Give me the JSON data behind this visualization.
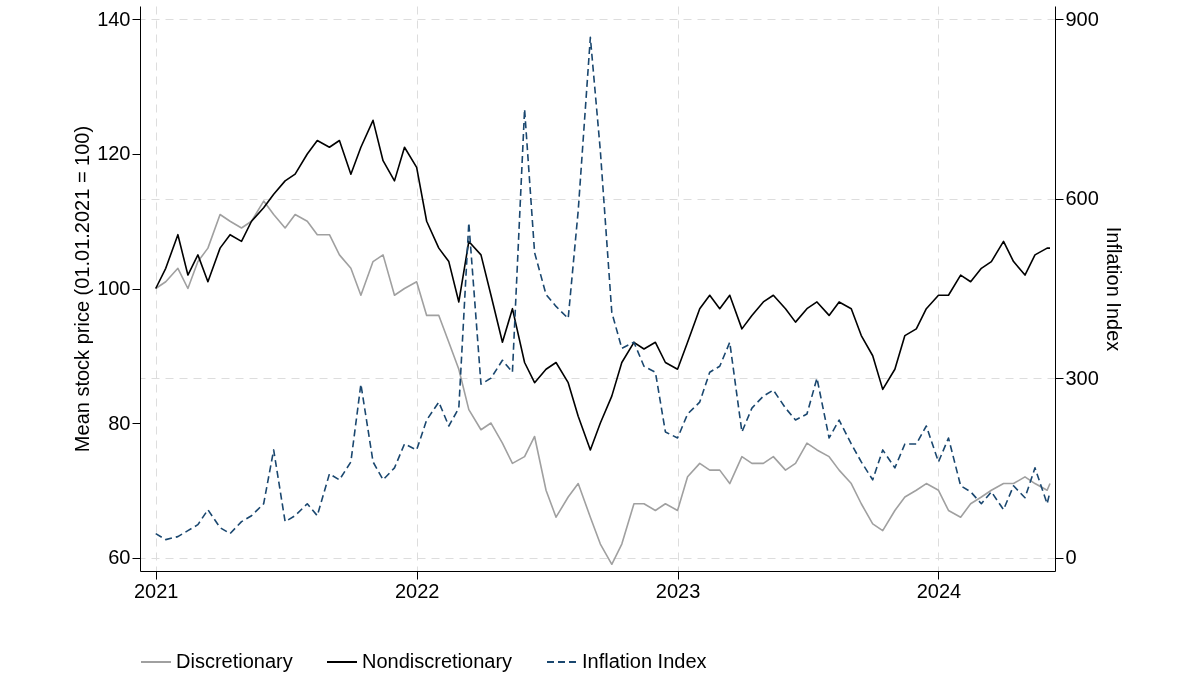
{
  "chart_data": {
    "type": "line",
    "ylabel": "Mean stock price (01.01.2021 = 100)",
    "y2label": "Inflation Index",
    "x": [
      "2021-01-01",
      "2021-01-15",
      "2021-02-01",
      "2021-02-15",
      "2021-03-01",
      "2021-03-15",
      "2021-04-01",
      "2021-04-15",
      "2021-05-01",
      "2021-05-15",
      "2021-06-01",
      "2021-06-15",
      "2021-07-01",
      "2021-07-15",
      "2021-08-01",
      "2021-08-15",
      "2021-09-01",
      "2021-09-15",
      "2021-10-01",
      "2021-10-15",
      "2021-11-01",
      "2021-11-15",
      "2021-12-01",
      "2021-12-15",
      "2022-01-01",
      "2022-01-15",
      "2022-02-01",
      "2022-02-15",
      "2022-03-01",
      "2022-03-15",
      "2022-04-01",
      "2022-04-15",
      "2022-05-01",
      "2022-05-15",
      "2022-06-01",
      "2022-06-15",
      "2022-07-01",
      "2022-07-15",
      "2022-08-01",
      "2022-08-15",
      "2022-09-01",
      "2022-09-15",
      "2022-10-01",
      "2022-10-15",
      "2022-11-01",
      "2022-11-15",
      "2022-12-01",
      "2022-12-15",
      "2023-01-01",
      "2023-01-15",
      "2023-02-01",
      "2023-02-15",
      "2023-03-01",
      "2023-03-15",
      "2023-04-01",
      "2023-04-15",
      "2023-05-01",
      "2023-05-15",
      "2023-06-01",
      "2023-06-15",
      "2023-07-01",
      "2023-07-15",
      "2023-08-01",
      "2023-08-15",
      "2023-09-01",
      "2023-09-15",
      "2023-10-01",
      "2023-10-15",
      "2023-11-01",
      "2023-11-15",
      "2023-12-01",
      "2023-12-15",
      "2024-01-01",
      "2024-01-15",
      "2024-02-01",
      "2024-02-15",
      "2024-03-01",
      "2024-03-15",
      "2024-04-01",
      "2024-04-15",
      "2024-05-01",
      "2024-05-15",
      "2024-06-01",
      "2024-06-05"
    ],
    "series": [
      {
        "name": "Discretionary",
        "color": "#a0a0a0",
        "line_style": "solid",
        "values": [
          100,
          101,
          103,
          100,
          104,
          106,
          111,
          110,
          109,
          110,
          113,
          111,
          109,
          111,
          110,
          108,
          108,
          105,
          103,
          99,
          104,
          105,
          99,
          100,
          101,
          96,
          96,
          92,
          88,
          82,
          79,
          80,
          77,
          74,
          75,
          78,
          70,
          66,
          69,
          71,
          66,
          62,
          59,
          62,
          68,
          68,
          67,
          68,
          67,
          72,
          74,
          73,
          73,
          71,
          75,
          74,
          74,
          75,
          73,
          74,
          77,
          76,
          75,
          73,
          71,
          68,
          65,
          64,
          67,
          69,
          70,
          71,
          70,
          67,
          66,
          68,
          69,
          70,
          71,
          71,
          72,
          71,
          70,
          71
        ]
      },
      {
        "name": "Nondiscretionary",
        "color": "#000000",
        "line_style": "solid",
        "values": [
          100,
          103,
          108,
          102,
          105,
          101,
          106,
          108,
          107,
          110,
          112,
          114,
          116,
          117,
          120,
          122,
          121,
          122,
          117,
          121,
          125,
          119,
          116,
          121,
          118,
          110,
          106,
          104,
          98,
          107,
          105,
          99,
          92,
          97,
          89,
          86,
          88,
          89,
          86,
          81,
          76,
          80,
          84,
          89,
          92,
          91,
          92,
          89,
          88,
          92,
          97,
          99,
          97,
          99,
          94,
          96,
          98,
          99,
          97,
          95,
          97,
          98,
          96,
          98,
          97,
          93,
          90,
          85,
          88,
          93,
          94,
          97,
          99,
          99,
          102,
          101,
          103,
          104,
          107,
          104,
          102,
          105,
          106,
          106
        ]
      },
      {
        "name": "Inflation Index",
        "color": "#1a476f",
        "line_style": "dashed",
        "axis": "y2",
        "values": [
          40,
          30,
          35,
          45,
          55,
          80,
          50,
          40,
          60,
          70,
          90,
          180,
          60,
          70,
          90,
          70,
          140,
          130,
          160,
          290,
          160,
          130,
          150,
          190,
          180,
          230,
          260,
          220,
          250,
          560,
          290,
          300,
          330,
          310,
          750,
          510,
          440,
          420,
          400,
          580,
          870,
          680,
          410,
          350,
          360,
          320,
          310,
          210,
          200,
          240,
          260,
          310,
          320,
          360,
          210,
          250,
          270,
          280,
          250,
          230,
          240,
          300,
          200,
          230,
          190,
          160,
          130,
          180,
          150,
          190,
          190,
          220,
          160,
          200,
          120,
          110,
          90,
          110,
          80,
          120,
          100,
          150,
          90,
          110
        ]
      }
    ],
    "xlim": [
      "2020-12-10",
      "2024-06-12"
    ],
    "xticks": [
      {
        "value": "2021-01-01",
        "label": "2021"
      },
      {
        "value": "2022-01-01",
        "label": "2022"
      },
      {
        "value": "2023-01-01",
        "label": "2023"
      },
      {
        "value": "2024-01-01",
        "label": "2024"
      }
    ],
    "ylim": [
      58,
      142
    ],
    "yticks": [
      60,
      80,
      100,
      120,
      140
    ],
    "y2lim": [
      -22.5,
      922.5
    ],
    "y2ticks": [
      0,
      300,
      600,
      900
    ],
    "grid": true,
    "legend": "bottom",
    "marker": "none"
  }
}
